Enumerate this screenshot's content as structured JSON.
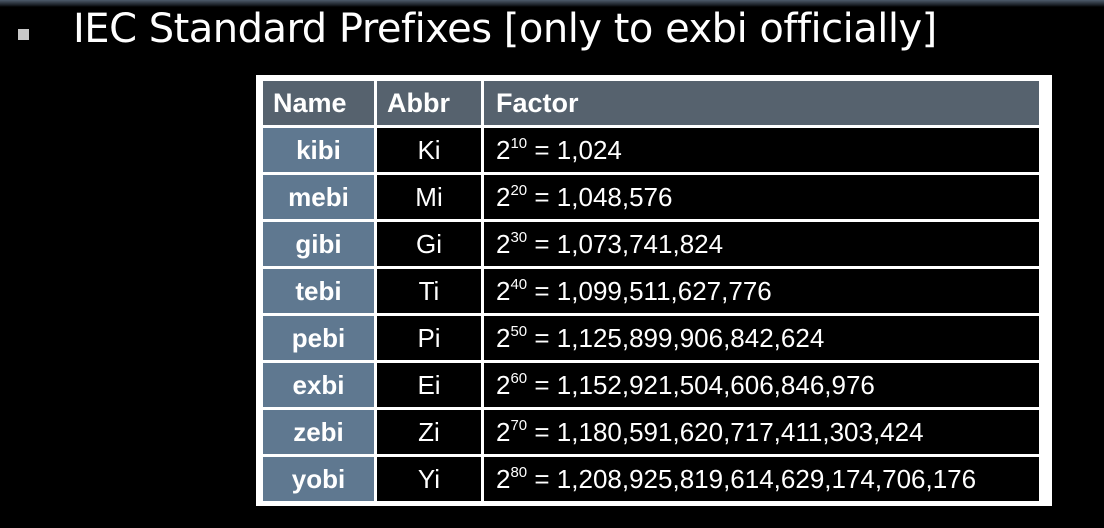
{
  "slide": {
    "title": "IEC Standard Prefixes [only to exbi officially]"
  },
  "table": {
    "headers": {
      "name": "Name",
      "abbr": "Abbr",
      "factor": "Factor"
    },
    "rows": [
      {
        "name": "kibi",
        "abbr": "Ki",
        "base": "2",
        "exponent": "10",
        "value": "= 1,024"
      },
      {
        "name": "mebi",
        "abbr": "Mi",
        "base": "2",
        "exponent": "20",
        "value": "= 1,048,576"
      },
      {
        "name": "gibi",
        "abbr": "Gi",
        "base": "2",
        "exponent": "30",
        "value": "= 1,073,741,824"
      },
      {
        "name": "tebi",
        "abbr": "Ti",
        "base": "2",
        "exponent": "40",
        "value": "= 1,099,511,627,776"
      },
      {
        "name": "pebi",
        "abbr": "Pi",
        "base": "2",
        "exponent": "50",
        "value": "= 1,125,899,906,842,624"
      },
      {
        "name": "exbi",
        "abbr": "Ei",
        "base": "2",
        "exponent": "60",
        "value": "= 1,152,921,504,606,846,976"
      },
      {
        "name": "zebi",
        "abbr": "Zi",
        "base": "2",
        "exponent": "70",
        "value": "= 1,180,591,620,717,411,303,424"
      },
      {
        "name": "yobi",
        "abbr": "Yi",
        "base": "2",
        "exponent": "80",
        "value": "= 1,208,925,819,614,629,174,706,176"
      }
    ]
  },
  "colors": {
    "background": "#000000",
    "header_fill": "#56626e",
    "name_cell_fill": "#5f7890",
    "grid_lines": "#ffffff",
    "text": "#ffffff"
  }
}
